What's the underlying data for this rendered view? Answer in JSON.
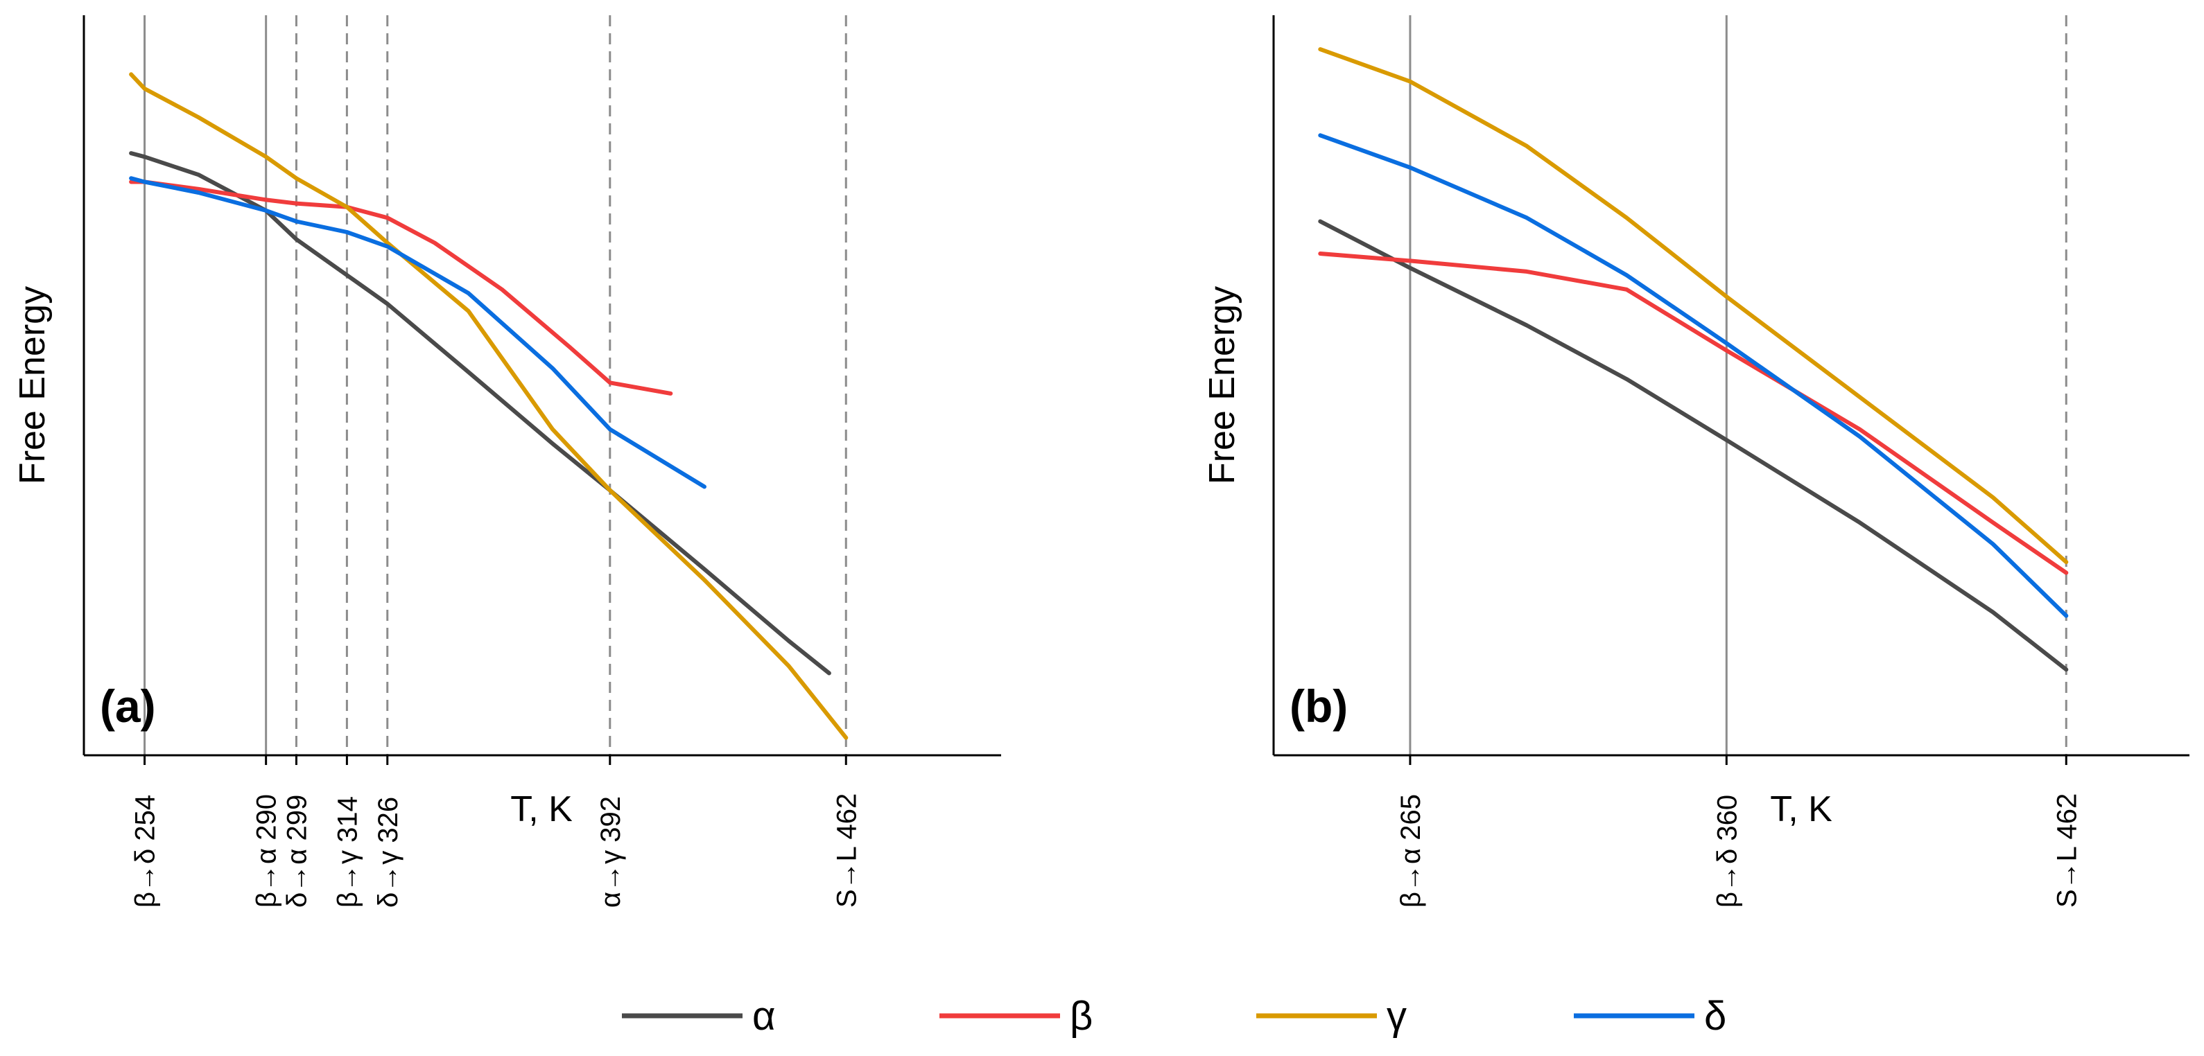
{
  "colors": {
    "alpha": "#4a4a4a",
    "beta": "#f03c3c",
    "gamma": "#d99a00",
    "delta": "#0a6ee0",
    "vline_solid": "#8c8c8c",
    "vline_dashed": "#8c8c8c",
    "axis": "#000000"
  },
  "legend": [
    {
      "key": "alpha",
      "label": "α"
    },
    {
      "key": "beta",
      "label": "β"
    },
    {
      "key": "gamma",
      "label": "γ"
    },
    {
      "key": "delta",
      "label": "δ"
    }
  ],
  "chart_data": [
    {
      "type": "line",
      "panel_label": "(a)",
      "xlabel": "T, K",
      "ylabel": "Free Energy",
      "xlim": [
        236,
        508
      ],
      "ylim": [
        0,
        100
      ],
      "grid": false,
      "transitions": [
        {
          "label": "β→δ 254",
          "t": 254,
          "style": "solid"
        },
        {
          "label": "β→α 290",
          "t": 290,
          "style": "solid"
        },
        {
          "label": "δ→α 299",
          "t": 299,
          "style": "dashed"
        },
        {
          "label": "β→γ 314",
          "t": 314,
          "style": "dashed"
        },
        {
          "label": "δ→γ 326",
          "t": 326,
          "style": "dashed"
        },
        {
          "label": "α→γ 392",
          "t": 392,
          "style": "dashed"
        },
        {
          "label": "S→L 462",
          "t": 462,
          "style": "dashed"
        }
      ],
      "series": [
        {
          "name": "alpha",
          "x": [
            250,
            254,
            270,
            290,
            299,
            314,
            326,
            350,
            375,
            392,
            420,
            445,
            457
          ],
          "y": [
            82.5,
            82,
            79.5,
            74.5,
            70.5,
            65.5,
            61.5,
            52,
            42,
            35.5,
            24.5,
            14.5,
            10
          ]
        },
        {
          "name": "beta",
          "x": [
            250,
            254,
            270,
            290,
            299,
            314,
            326,
            340,
            360,
            380,
            392,
            410
          ],
          "y": [
            78.5,
            78.5,
            77.5,
            76,
            75.5,
            75,
            73.5,
            70,
            63.5,
            55.5,
            50.5,
            49
          ]
        },
        {
          "name": "gamma",
          "x": [
            250,
            254,
            270,
            290,
            299,
            314,
            326,
            350,
            375,
            392,
            420,
            445,
            462
          ],
          "y": [
            93.5,
            91.5,
            87.5,
            82,
            79,
            75,
            70,
            60.5,
            44,
            35.5,
            23,
            11,
            1
          ]
        },
        {
          "name": "delta",
          "x": [
            250,
            254,
            270,
            290,
            299,
            314,
            326,
            350,
            375,
            392,
            420
          ],
          "y": [
            79,
            78.5,
            77,
            74.5,
            73,
            71.5,
            69.5,
            63,
            52.5,
            44,
            36
          ]
        }
      ]
    },
    {
      "type": "line",
      "panel_label": "(b)",
      "xlabel": "T, K",
      "ylabel": "Free Energy",
      "xlim": [
        224,
        499
      ],
      "ylim": [
        0,
        100
      ],
      "grid": false,
      "transitions": [
        {
          "label": "β→α 265",
          "t": 265,
          "style": "solid"
        },
        {
          "label": "β→δ 360",
          "t": 360,
          "style": "solid"
        },
        {
          "label": "S→L 462",
          "t": 462,
          "style": "dashed"
        }
      ],
      "series": [
        {
          "name": "alpha",
          "x": [
            238,
            265,
            300,
            330,
            360,
            400,
            440,
            462
          ],
          "y": [
            73,
            66.5,
            58.5,
            51,
            42.5,
            31,
            18.5,
            10.5
          ]
        },
        {
          "name": "beta",
          "x": [
            238,
            265,
            300,
            330,
            360,
            400,
            440,
            462
          ],
          "y": [
            68.5,
            67.5,
            66,
            63.5,
            55,
            44,
            31,
            24
          ]
        },
        {
          "name": "gamma",
          "x": [
            238,
            265,
            300,
            330,
            360,
            400,
            440,
            462
          ],
          "y": [
            97,
            92.5,
            83.5,
            73.5,
            62.5,
            48.5,
            34.5,
            25.5
          ]
        },
        {
          "name": "delta",
          "x": [
            238,
            265,
            300,
            330,
            360,
            400,
            440,
            462
          ],
          "y": [
            85,
            80.5,
            73.5,
            65.5,
            56,
            43,
            28,
            18
          ]
        }
      ]
    }
  ]
}
